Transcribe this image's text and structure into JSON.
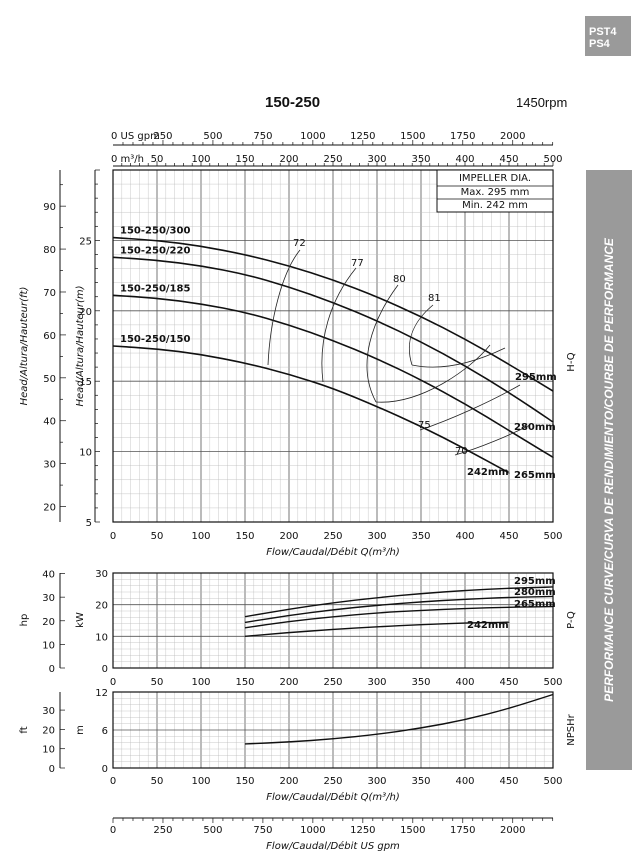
{
  "page": {
    "badge_line1": "PST4",
    "badge_line2": "PS4",
    "model": "150-250",
    "rpm": "1450rpm",
    "side_label": "PERFORMANCE CURVE/CURVA DE RENDIMIENTO/COURBE DE PERFORMANCE",
    "impeller_title": "IMPELLER DIA.",
    "impeller_max": "Max.  295  mm",
    "impeller_min": "Min.   242  mm"
  },
  "chart_data": [
    {
      "type": "line",
      "name": "H-Q",
      "panel_label": "H-Q",
      "x_top_gpm_label": "0 US gpm",
      "x_top_gpm_ticks": [
        "250",
        "500",
        "750",
        "1000",
        "1250",
        "1500",
        "1750",
        "2000"
      ],
      "x_top_m3_label": "0  m³/h",
      "x_top_m3_ticks": [
        "50",
        "100",
        "150",
        "200",
        "250",
        "300",
        "350",
        "400",
        "450",
        "500"
      ],
      "x_ticks": [
        "0",
        "50",
        "100",
        "150",
        "200",
        "250",
        "300",
        "350",
        "400",
        "450",
        "500"
      ],
      "xlabel": "Flow/Caudal/Débit Q(m³/h)",
      "ylabel_ft": "Head/Altura/Hauteur(ft)",
      "ylabel_m": "Head/Altura/Hauteur(m)",
      "y_m_ticks": [
        "5",
        "10",
        "15",
        "20",
        "25"
      ],
      "y_ft_ticks": [
        "20",
        "30",
        "40",
        "50",
        "60",
        "70",
        "80",
        "90"
      ],
      "xlim": [
        0,
        500
      ],
      "ylim": [
        5,
        30
      ],
      "grid": true,
      "series": [
        {
          "name": "295mm",
          "side_label": "150-250/300",
          "x": [
            0,
            50,
            100,
            150,
            200,
            250,
            300,
            350,
            400,
            450,
            500
          ],
          "y": [
            25.2,
            25.0,
            24.6,
            24.0,
            23.2,
            22.2,
            21.0,
            19.6,
            18.0,
            16.2,
            14.3
          ]
        },
        {
          "name": "280mm",
          "side_label": "150-250/220",
          "x": [
            0,
            50,
            100,
            150,
            200,
            250,
            300,
            350,
            400,
            450,
            500
          ],
          "y": [
            23.8,
            23.6,
            23.2,
            22.6,
            21.7,
            20.6,
            19.3,
            17.8,
            16.1,
            14.2,
            12.1
          ]
        },
        {
          "name": "265mm",
          "side_label": "150-250/185",
          "x": [
            0,
            50,
            100,
            150,
            200,
            250,
            300,
            350,
            400,
            450,
            500
          ],
          "y": [
            21.1,
            20.9,
            20.5,
            19.9,
            19.0,
            17.9,
            16.6,
            15.1,
            13.4,
            11.5,
            9.6
          ]
        },
        {
          "name": "242mm",
          "side_label": "150-250/150",
          "x": [
            0,
            50,
            100,
            150,
            200,
            250,
            300,
            350,
            400,
            450
          ],
          "y": [
            17.5,
            17.3,
            16.9,
            16.3,
            15.5,
            14.5,
            13.2,
            11.8,
            10.2,
            8.5
          ]
        }
      ],
      "efficiency_labels": [
        "72",
        "77",
        "80",
        "81",
        "75",
        "70"
      ]
    },
    {
      "type": "line",
      "name": "P-Q",
      "panel_label": "P-Q",
      "xlim": [
        0,
        500
      ],
      "ylim": [
        0,
        30
      ],
      "x_ticks": [
        "0",
        "50",
        "100",
        "150",
        "200",
        "250",
        "300",
        "350",
        "400",
        "450",
        "500"
      ],
      "xlabel": "Flow/Caudal/Débit Q(m³/h)",
      "ylabel_kw": "kW",
      "ylabel_hp": "hp",
      "y_kw_ticks": [
        "0",
        "10",
        "20",
        "30"
      ],
      "y_hp_ticks": [
        "0",
        "10",
        "20",
        "30",
        "40"
      ],
      "series": [
        {
          "name": "295mm",
          "x": [
            150,
            200,
            250,
            300,
            350,
            400,
            450,
            500
          ],
          "y": [
            16.2,
            18.6,
            20.6,
            22.2,
            23.5,
            24.5,
            25.2,
            25.6
          ]
        },
        {
          "name": "280mm",
          "x": [
            150,
            200,
            250,
            300,
            350,
            400,
            450,
            500
          ],
          "y": [
            14.4,
            16.6,
            18.4,
            19.8,
            20.9,
            21.7,
            22.3,
            22.6
          ]
        },
        {
          "name": "265mm",
          "x": [
            150,
            200,
            250,
            300,
            350,
            400,
            450,
            500
          ],
          "y": [
            12.7,
            14.7,
            16.2,
            17.4,
            18.2,
            18.8,
            19.2,
            19.4
          ]
        },
        {
          "name": "242mm",
          "x": [
            150,
            200,
            250,
            300,
            350,
            400,
            450
          ],
          "y": [
            10.0,
            11.2,
            12.2,
            13.0,
            13.7,
            14.2,
            14.5
          ]
        }
      ]
    },
    {
      "type": "line",
      "name": "NPSHr",
      "panel_label": "NPSHr",
      "xlim": [
        0,
        500
      ],
      "ylim": [
        0,
        12
      ],
      "x_ticks": [
        "0",
        "50",
        "100",
        "150",
        "200",
        "250",
        "300",
        "350",
        "400",
        "450",
        "500"
      ],
      "xlabel": "Flow/Caudal/Débit Q(m³/h)",
      "ylabel_m": "m",
      "ylabel_ft": "ft",
      "y_m_ticks": [
        "0",
        "6",
        "12"
      ],
      "y_ft_ticks": [
        "0",
        "10",
        "20",
        "30"
      ],
      "series": [
        {
          "name": "NPSHr",
          "x": [
            150,
            200,
            250,
            300,
            350,
            400,
            450,
            500
          ],
          "y": [
            3.8,
            4.1,
            4.6,
            5.3,
            6.3,
            7.6,
            9.4,
            11.6
          ]
        }
      ]
    },
    {
      "type": "line",
      "name": "US gpm axis",
      "x_ticks": [
        "0",
        "250",
        "500",
        "750",
        "1000",
        "1250",
        "1500",
        "1750",
        "2000"
      ],
      "xlabel": "Flow/Caudal/Débit  US gpm"
    }
  ]
}
